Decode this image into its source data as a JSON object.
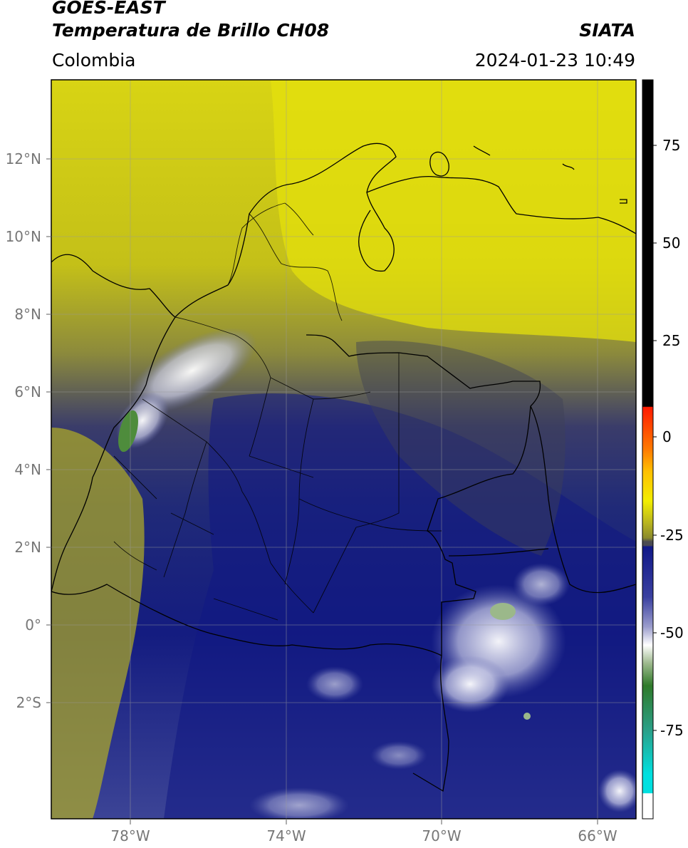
{
  "header": {
    "satellite": "GOES-EAST",
    "product": "Temperatura de Brillo CH08",
    "organization": "SIATA",
    "region": "Colombia",
    "timestamp": "2024-01-23 10:49"
  },
  "map": {
    "lat_ticks": [
      "12°N",
      "10°N",
      "8°N",
      "6°N",
      "4°N",
      "2°N",
      "0°",
      "2°S"
    ],
    "lon_ticks": [
      "78°W",
      "74°W",
      "70°W",
      "66°W"
    ]
  },
  "colorbar": {
    "tick_labels": [
      "75",
      "50",
      "25",
      "0",
      "-25",
      "-50",
      "-75"
    ],
    "colors": {
      "black": "#000000",
      "red": "#ff1a00",
      "orange": "#ff9a00",
      "yellow": "#f2ee00",
      "olive": "#8a8a2c",
      "gray": "#4a4a52",
      "navy": "#101888",
      "lavender": "#9a9ccc",
      "white": "#ffffff",
      "green": "#2f7a2a",
      "teal": "#2aa088",
      "cyan": "#00e0e0"
    }
  }
}
